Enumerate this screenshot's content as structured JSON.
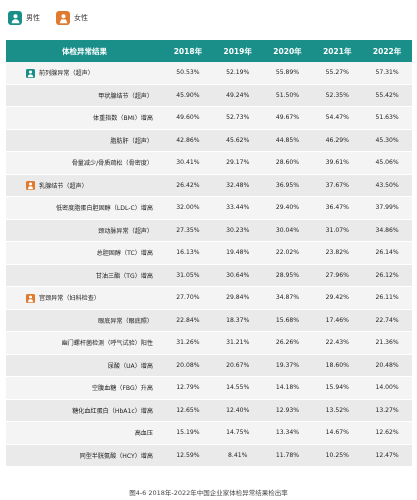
{
  "legend": {
    "male": "男性",
    "female": "女性"
  },
  "chart_data": {
    "type": "table",
    "title": "",
    "columns": [
      "体检异常结果",
      "2018年",
      "2019年",
      "2020年",
      "2021年",
      "2022年"
    ],
    "rows": [
      {
        "name": "前列腺异常（超声）",
        "icon": "male",
        "values": [
          "50.53%",
          "52.19%",
          "55.89%",
          "55.27%",
          "57.31%"
        ]
      },
      {
        "name": "甲状腺结节（超声）",
        "icon": "",
        "values": [
          "45.90%",
          "49.24%",
          "51.50%",
          "52.35%",
          "55.42%"
        ]
      },
      {
        "name": "体重指数（BMI）增高",
        "icon": "",
        "values": [
          "49.60%",
          "52.73%",
          "49.67%",
          "54.47%",
          "51.63%"
        ]
      },
      {
        "name": "脂肪肝（超声）",
        "icon": "",
        "values": [
          "42.86%",
          "45.62%",
          "44.85%",
          "46.29%",
          "45.30%"
        ]
      },
      {
        "name": "骨量减少/骨质疏松（骨密度）",
        "icon": "",
        "values": [
          "30.41%",
          "29.17%",
          "28.60%",
          "39.61%",
          "45.06%"
        ]
      },
      {
        "name": "乳腺结节（超声）",
        "icon": "female",
        "values": [
          "26.42%",
          "32.48%",
          "36.95%",
          "37.67%",
          "43.50%"
        ]
      },
      {
        "name": "低密度脂蛋白胆固醇（LDL-C）增高",
        "icon": "",
        "values": [
          "32.00%",
          "33.44%",
          "29.40%",
          "36.47%",
          "37.99%"
        ]
      },
      {
        "name": "颈动脉异常（超声）",
        "icon": "",
        "values": [
          "27.35%",
          "30.23%",
          "30.04%",
          "31.07%",
          "34.86%"
        ]
      },
      {
        "name": "总胆固醇（TC）增高",
        "icon": "",
        "values": [
          "16.13%",
          "19.48%",
          "22.02%",
          "23.82%",
          "26.14%"
        ]
      },
      {
        "name": "甘油三酯（TG）增高",
        "icon": "",
        "values": [
          "31.05%",
          "30.64%",
          "28.95%",
          "27.96%",
          "26.12%"
        ]
      },
      {
        "name": "宫颈异常（妇科检查）",
        "icon": "female",
        "values": [
          "27.70%",
          "29.84%",
          "34.87%",
          "29.42%",
          "26.11%"
        ]
      },
      {
        "name": "眼底异常（眼底照）",
        "icon": "",
        "values": [
          "22.84%",
          "18.37%",
          "15.68%",
          "17.46%",
          "22.74%"
        ]
      },
      {
        "name": "幽门螺杆菌检测（呼气试验）阳性",
        "icon": "",
        "values": [
          "31.26%",
          "31.21%",
          "26.26%",
          "22.43%",
          "21.36%"
        ]
      },
      {
        "name": "尿酸（UA）增高",
        "icon": "",
        "values": [
          "20.08%",
          "20.67%",
          "19.37%",
          "18.60%",
          "20.48%"
        ]
      },
      {
        "name": "空腹血糖（FBG）升高",
        "icon": "",
        "values": [
          "12.79%",
          "14.55%",
          "14.18%",
          "15.94%",
          "14.00%"
        ]
      },
      {
        "name": "糖化血红蛋白（HbA1c）增高",
        "icon": "",
        "values": [
          "12.65%",
          "12.40%",
          "12.93%",
          "13.52%",
          "13.27%"
        ]
      },
      {
        "name": "高血压",
        "icon": "",
        "values": [
          "15.19%",
          "14.75%",
          "13.34%",
          "14.67%",
          "12.62%"
        ]
      },
      {
        "name": "同型半胱氨酸（HCY）增高",
        "icon": "",
        "values": [
          "12.59%",
          "8.41%",
          "11.78%",
          "10.25%",
          "12.47%"
        ]
      }
    ],
    "caption": "图4-6 2018年-2022年中国企业家体检异常结果检出率"
  },
  "colors": {
    "header_bg": "#1a8f8a",
    "male_icon": "#1a8f8a",
    "female_icon": "#e07a2e"
  }
}
